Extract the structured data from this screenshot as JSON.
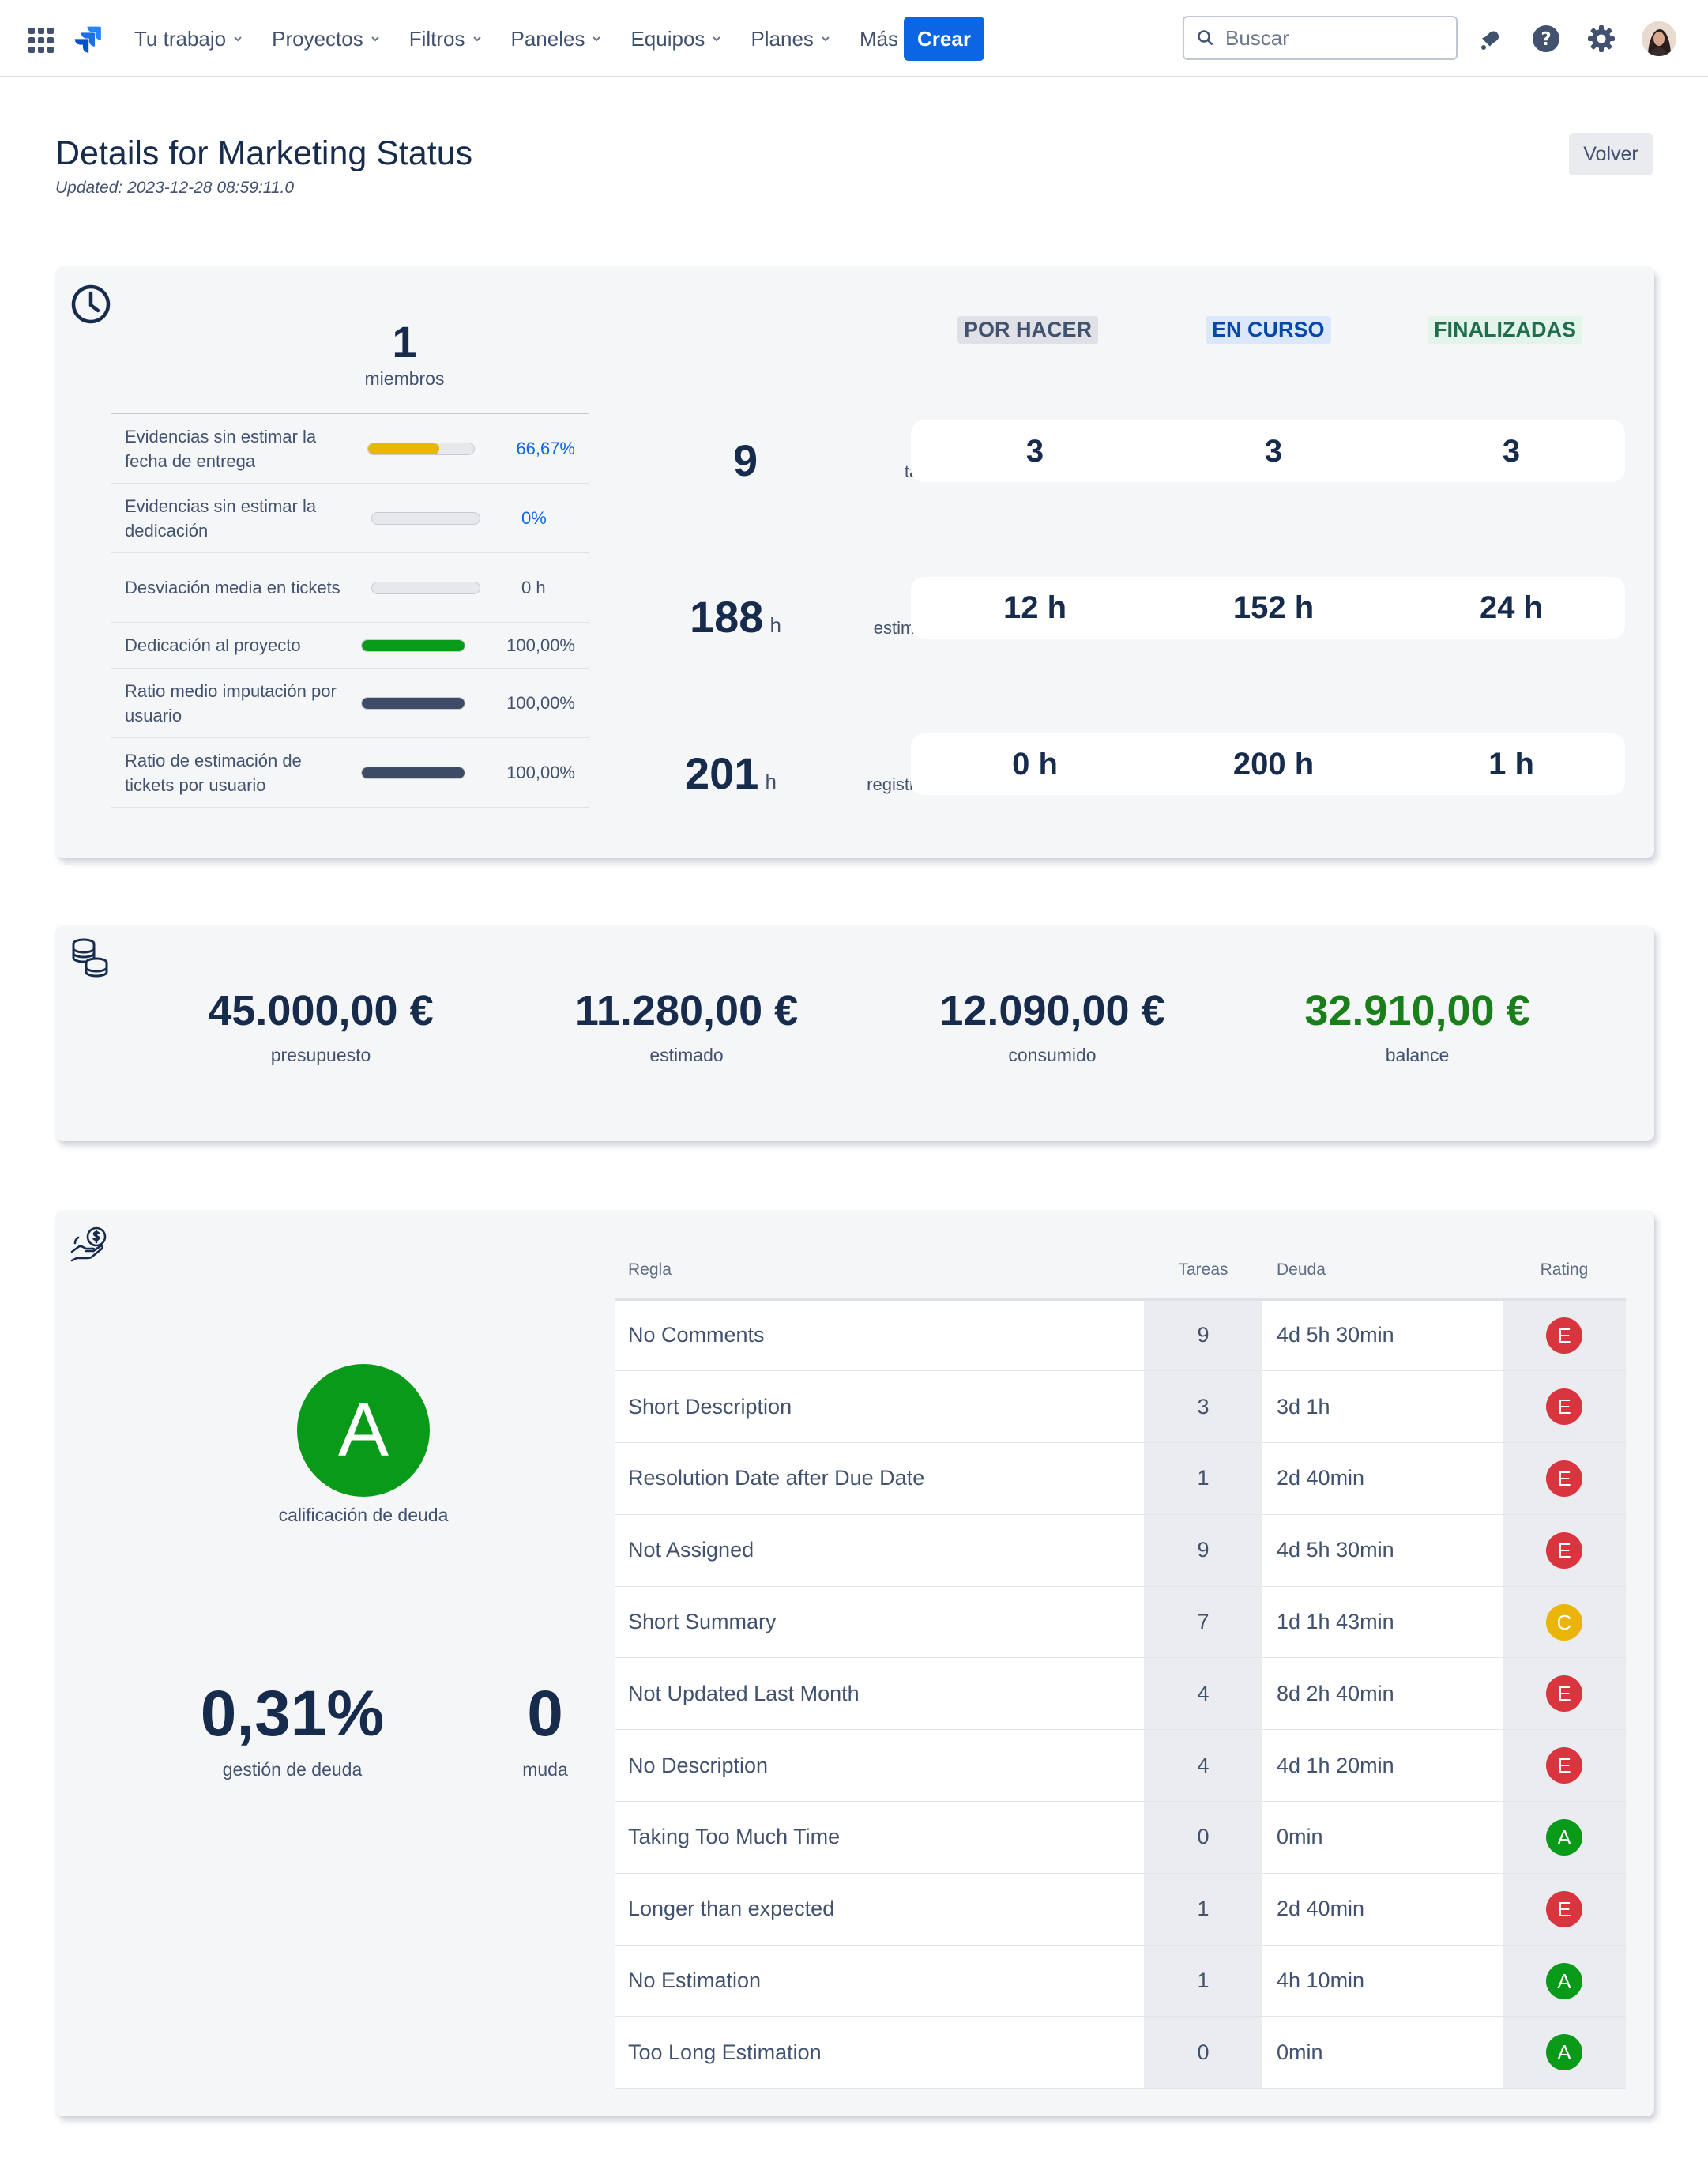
{
  "nav": {
    "items": [
      {
        "label": "Tu trabajo"
      },
      {
        "label": "Proyectos"
      },
      {
        "label": "Filtros"
      },
      {
        "label": "Paneles"
      },
      {
        "label": "Equipos"
      },
      {
        "label": "Planes"
      },
      {
        "label": "Más"
      }
    ],
    "create_label": "Crear",
    "search_placeholder": "Buscar"
  },
  "page": {
    "title": "Details for Marketing Status",
    "updated": "Updated: 2023-12-28 08:59:11.0",
    "back_label": "Volver"
  },
  "time_card": {
    "members_count": "1",
    "members_label": "miembros",
    "metrics": [
      {
        "label": "Evidencias sin estimar la fecha de entrega",
        "value": "66,67%",
        "fraction": 0.6667,
        "color": "#e6b800"
      },
      {
        "label": "Evidencias sin estimar la dedicación",
        "value": "0%",
        "fraction": 0,
        "color": "#e6b800"
      },
      {
        "label": "Desviación media en tickets",
        "value": "0 h",
        "fraction": 0,
        "color": "#42526e"
      },
      {
        "label": "Dedicación al proyecto",
        "value": "100,00%",
        "fraction": 1,
        "color": "#0a9a1a"
      },
      {
        "label": "Ratio medio imputación por usuario",
        "value": "100,00%",
        "fraction": 1,
        "color": "#3e4b66"
      },
      {
        "label": "Ratio de estimación de tickets por usuario",
        "value": "100,00%",
        "fraction": 1,
        "color": "#3e4b66"
      }
    ],
    "status_headers": {
      "todo": "POR HACER",
      "in_progress": "EN CURSO",
      "done": "FINALIZADAS"
    },
    "status_colors": {
      "todo_bg": "#dfe1e6",
      "todo_fg": "#42526e",
      "in_progress_bg": "#dbe7fb",
      "in_progress_fg": "#0747a6",
      "done_bg": "#e3f5e9",
      "done_fg": "#216e4e"
    },
    "rows": [
      {
        "total": "9",
        "unit": "",
        "label": "tareas",
        "todo": "3",
        "in_progress": "3",
        "done": "3"
      },
      {
        "total": "188",
        "unit": "h",
        "label": "estimadas",
        "todo": "12 h",
        "in_progress": "152 h",
        "done": "24 h"
      },
      {
        "total": "201",
        "unit": "h",
        "label": "registradas",
        "todo": "0 h",
        "in_progress": "200 h",
        "done": "1 h"
      }
    ]
  },
  "budget_card": {
    "items": [
      {
        "value": "45.000,00 €",
        "label": "presupuesto",
        "color": "#172b4d"
      },
      {
        "value": "11.280,00 €",
        "label": "estimado",
        "color": "#172b4d"
      },
      {
        "value": "12.090,00 €",
        "label": "consumido",
        "color": "#172b4d"
      },
      {
        "value": "32.910,00 €",
        "label": "balance",
        "color": "#1a7f1a"
      }
    ]
  },
  "debt_card": {
    "grade": "A",
    "grade_label": "calificación de deuda",
    "management_value": "0,31%",
    "management_label": "gestión de deuda",
    "muda_value": "0",
    "muda_label": "muda",
    "table": {
      "headers": {
        "rule": "Regla",
        "tasks": "Tareas",
        "debt": "Deuda",
        "rating": "Rating"
      },
      "rows": [
        {
          "rule": "No Comments",
          "tasks": "9",
          "debt": "4d 5h 30min",
          "rating": "E"
        },
        {
          "rule": "Short Description",
          "tasks": "3",
          "debt": "3d 1h",
          "rating": "E"
        },
        {
          "rule": "Resolution Date after Due Date",
          "tasks": "1",
          "debt": "2d 40min",
          "rating": "E"
        },
        {
          "rule": "Not Assigned",
          "tasks": "9",
          "debt": "4d 5h 30min",
          "rating": "E"
        },
        {
          "rule": "Short Summary",
          "tasks": "7",
          "debt": "1d 1h 43min",
          "rating": "C"
        },
        {
          "rule": "Not Updated Last Month",
          "tasks": "4",
          "debt": "8d 2h 40min",
          "rating": "E"
        },
        {
          "rule": "No Description",
          "tasks": "4",
          "debt": "4d 1h 20min",
          "rating": "E"
        },
        {
          "rule": "Taking Too Much Time",
          "tasks": "0",
          "debt": "0min",
          "rating": "A"
        },
        {
          "rule": "Longer than expected",
          "tasks": "1",
          "debt": "2d 40min",
          "rating": "E"
        },
        {
          "rule": "No Estimation",
          "tasks": "1",
          "debt": "4h 10min",
          "rating": "A"
        },
        {
          "rule": "Too Long Estimation",
          "tasks": "0",
          "debt": "0min",
          "rating": "A"
        }
      ]
    }
  }
}
